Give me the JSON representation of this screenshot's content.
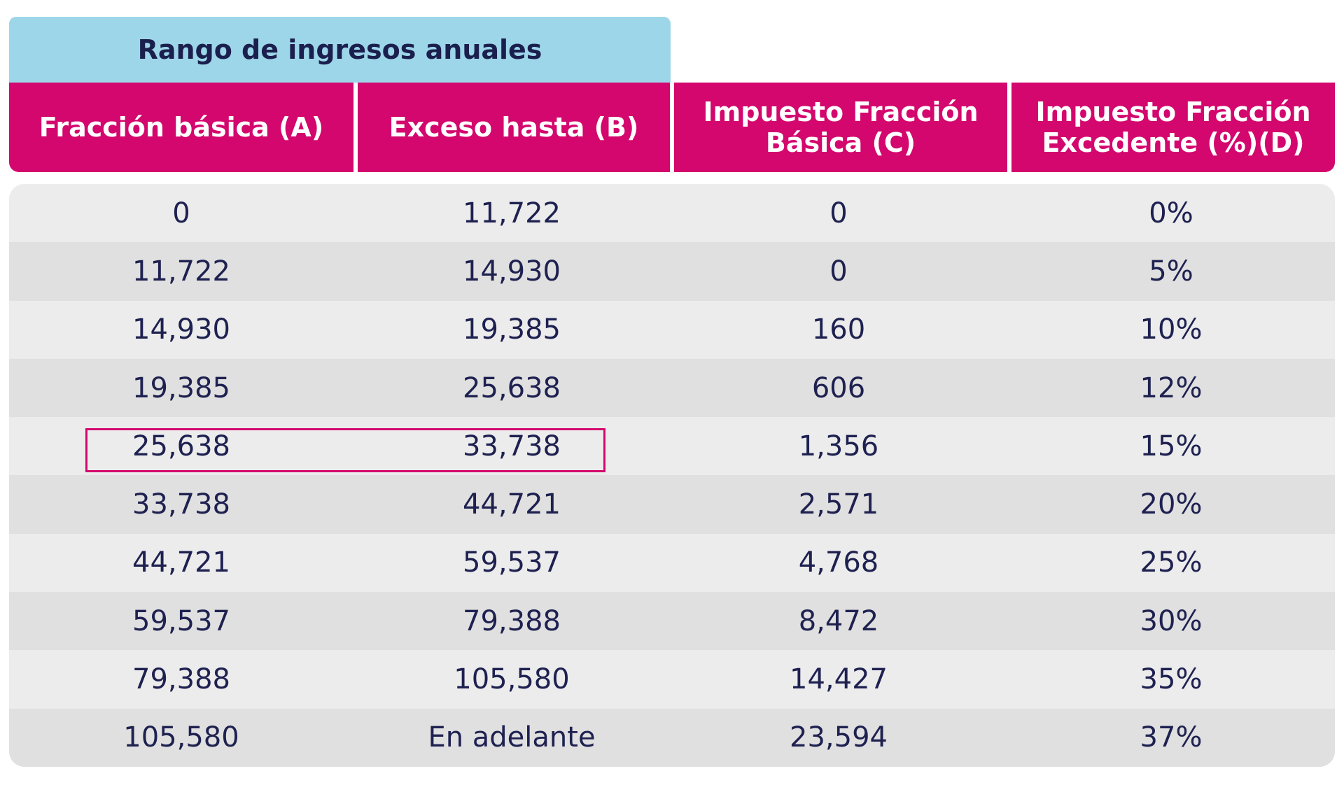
{
  "table": {
    "group_header": "Rango de ingresos anuales",
    "columns": [
      "Fracción básica (A)",
      "Exceso hasta (B)",
      "Impuesto Fracción\nBásica (C)",
      "Impuesto Fracción\nExcedente (%)(D)"
    ],
    "rows": [
      [
        "0",
        "11,722",
        "0",
        "0%"
      ],
      [
        "11,722",
        "14,930",
        "0",
        "5%"
      ],
      [
        "14,930",
        "19,385",
        "160",
        "10%"
      ],
      [
        "19,385",
        "25,638",
        "606",
        "12%"
      ],
      [
        "25,638",
        "33,738",
        "1,356",
        "15%"
      ],
      [
        "33,738",
        "44,721",
        "2,571",
        "20%"
      ],
      [
        "44,721",
        "59,537",
        "4,768",
        "25%"
      ],
      [
        "59,537",
        "79,388",
        "8,472",
        "30%"
      ],
      [
        "79,388",
        "105,580",
        "14,427",
        "35%"
      ],
      [
        "105,580",
        "En adelante",
        "23,594",
        "37%"
      ]
    ],
    "highlighted_row_index": 4,
    "colors": {
      "group_header_bg": "#9dd6e9",
      "column_header_bg": "#d3076d",
      "row_light": "#ececec",
      "row_dark": "#e0e0e0",
      "text": "#1e2150",
      "highlight_border": "#d3076d"
    }
  }
}
